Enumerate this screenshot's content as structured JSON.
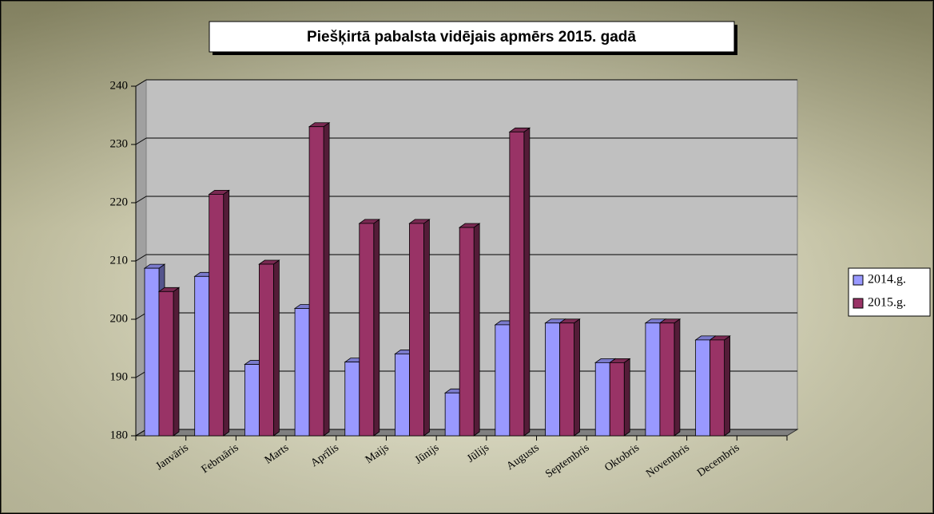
{
  "chart_data": {
    "type": "bar3d",
    "title": "Piešķirtā  pabalsta  vidējais apmērs 2015. gadā",
    "categories": [
      "Janvāris",
      "Februāris",
      "Marts",
      "Aprīlis",
      "Maijs",
      "Jūnijs",
      "Jūlijs",
      "Augusts",
      "Septembris",
      "Oktobris",
      "Novembris",
      "Decembris"
    ],
    "series": [
      {
        "name": "2014.g.",
        "color": "#9999ff",
        "values": [
          209.3,
          207.9,
          192.8,
          202.4,
          193.2,
          194.6,
          187.9,
          199.6,
          199.9,
          193.1,
          199.9,
          197.0
        ]
      },
      {
        "name": "2015.g.",
        "color": "#993366",
        "values": [
          205.3,
          222.0,
          210.0,
          233.6,
          217.0,
          217.0,
          216.3,
          232.7,
          199.9,
          193.1,
          199.9,
          197.0
        ]
      }
    ],
    "ylim": [
      180,
      240
    ],
    "yticks": [
      180,
      190,
      200,
      210,
      220,
      230,
      240
    ],
    "grid": true,
    "legend": "right"
  }
}
